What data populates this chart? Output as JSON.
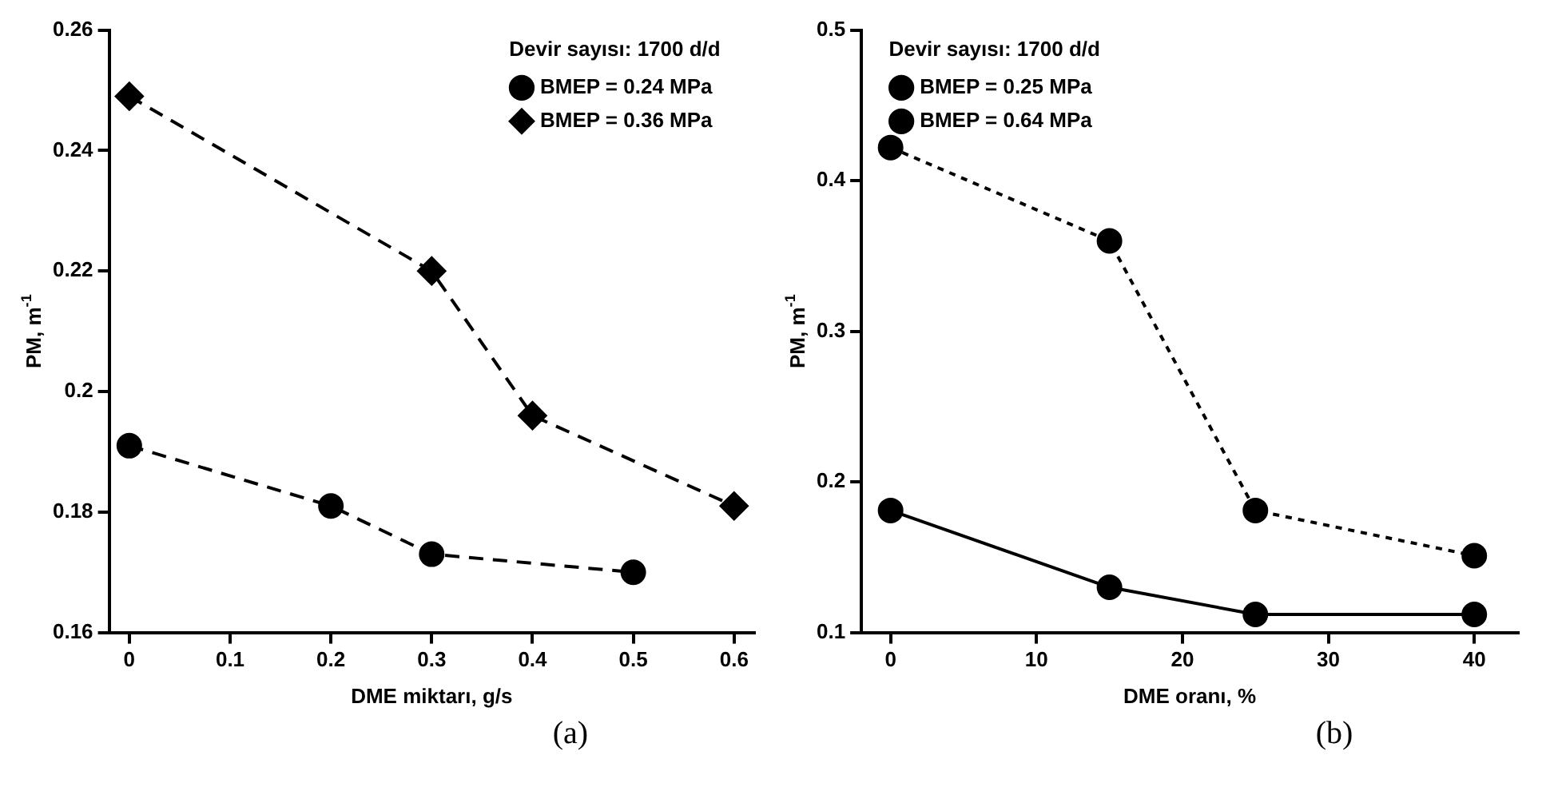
{
  "chart_data": [
    {
      "type": "line",
      "xlabel": "DME miktarı, g/s",
      "ylabel": "PM, m$^{-1}$",
      "legend_title": "Devir sayısı: 1700 d/d",
      "legend": "top right",
      "grid": false,
      "xlim": [
        -0.02,
        0.62
      ],
      "xticks": [
        0,
        0.1,
        0.2,
        0.3,
        0.4,
        0.5,
        0.6
      ],
      "ylim": [
        0.16,
        0.26
      ],
      "yticks": [
        0.16,
        0.18,
        0.2,
        0.22,
        0.24,
        0.26
      ],
      "annotations": [
        "(a)"
      ],
      "series": [
        {
          "name": "BMEP = 0.24 MPa",
          "color": "#000000",
          "marker": "circle",
          "line_style": "dashed",
          "x": [
            0,
            0.2,
            0.3,
            0.5
          ],
          "values": [
            0.191,
            0.181,
            0.173,
            0.17
          ]
        },
        {
          "name": "BMEP = 0.36 MPa",
          "color": "#000000",
          "marker": "diamond",
          "line_style": "dashed",
          "x": [
            0,
            0.3,
            0.4,
            0.6
          ],
          "values": [
            0.249,
            0.22,
            0.196,
            0.181
          ]
        }
      ]
    },
    {
      "type": "line",
      "xlabel": "DME oranı, %",
      "ylabel": "PM, m$^{-1}$",
      "legend_title": "Devir sayısı: 1700 d/d",
      "legend": "top left",
      "grid": false,
      "xlim": [
        -2,
        43
      ],
      "xticks": [
        0,
        10,
        20,
        30,
        40
      ],
      "ylim": [
        0.1,
        0.5
      ],
      "yticks": [
        0.1,
        0.2,
        0.3,
        0.4,
        0.5
      ],
      "annotations": [
        "(b)"
      ],
      "series": [
        {
          "name": "BMEP = 0.25 MPa",
          "color": "#000000",
          "marker": "circle",
          "line_style": "solid",
          "x": [
            0,
            15,
            25,
            40
          ],
          "values": [
            0.181,
            0.13,
            0.112,
            0.112
          ]
        },
        {
          "name": "BMEP = 0.64 MPa",
          "color": "#000000",
          "marker": "circle",
          "line_style": "dotted",
          "x": [
            0,
            15,
            25,
            40
          ],
          "values": [
            0.422,
            0.36,
            0.181,
            0.151
          ]
        }
      ]
    }
  ]
}
